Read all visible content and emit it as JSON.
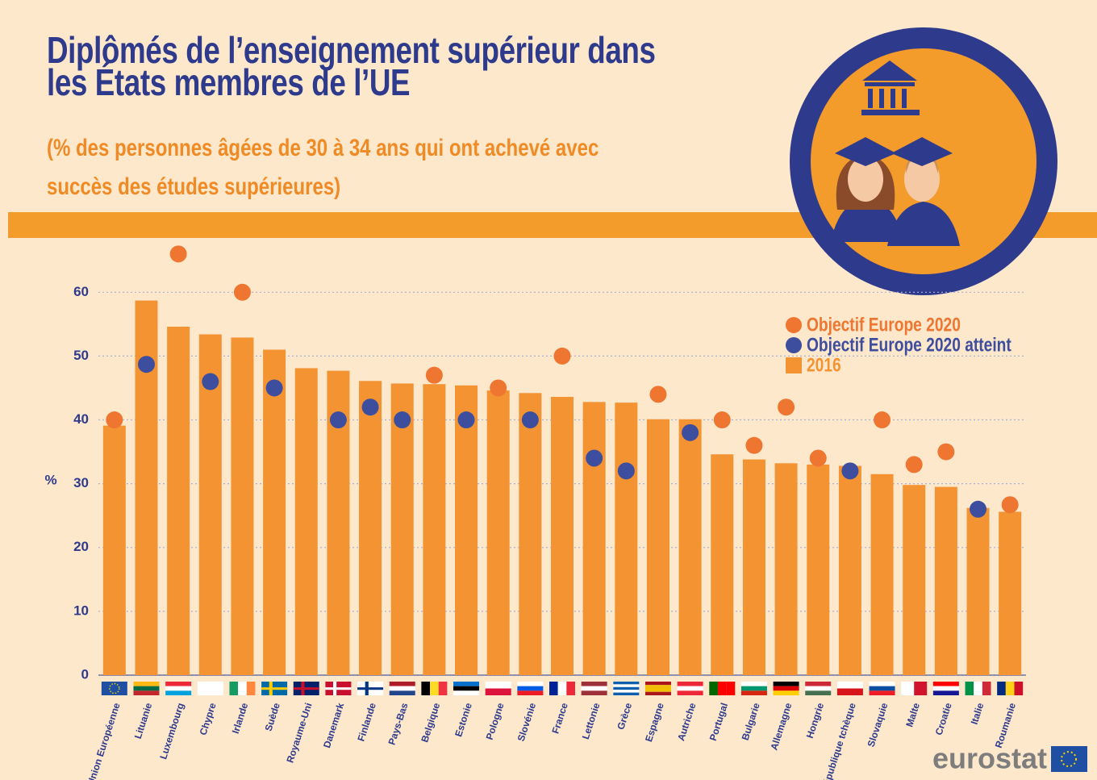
{
  "chart_data": {
    "type": "bar",
    "title": "Diplômés de l’enseignement supérieur dans les États membres de l’UE",
    "subtitle": "(% des personnes âgées de 30 à 34 ans qui ont achevé avec succès des études supérieures)",
    "y_label": "%",
    "categories": [
      "Union Européenne",
      "Lituanie",
      "Luxembourg",
      "Chypre",
      "Irlande",
      "Suède",
      "Royaume-Uni",
      "Danemark",
      "Finlande",
      "Pays-Bas",
      "Belgique",
      "Estonie",
      "Pologne",
      "Slovénie",
      "France",
      "Lettonie",
      "Grèce",
      "Espagne",
      "Autriche",
      "Portugal",
      "Bulgarie",
      "Allemagne",
      "Hongrie",
      "République tchèque",
      "Slovaquie",
      "Malte",
      "Croatie",
      "Italie",
      "Roumanie"
    ],
    "series": [
      {
        "name": "2016",
        "type": "bar",
        "color": "#f39332",
        "values": [
          39.1,
          58.7,
          54.6,
          53.4,
          52.9,
          51.0,
          48.1,
          47.7,
          46.1,
          45.7,
          45.6,
          45.4,
          44.6,
          44.2,
          43.6,
          42.8,
          42.7,
          40.1,
          40.1,
          34.6,
          33.8,
          33.2,
          33.0,
          32.8,
          31.5,
          29.8,
          29.5,
          26.2,
          25.6
        ]
      },
      {
        "name": "Objectif Europe 2020",
        "type": "scatter",
        "color": "#ee7630",
        "values": [
          40,
          null,
          66,
          null,
          60,
          null,
          null,
          null,
          null,
          null,
          47,
          null,
          45,
          null,
          50,
          null,
          null,
          44,
          null,
          40,
          36,
          42,
          34,
          null,
          40,
          33,
          35,
          null,
          26.7
        ]
      },
      {
        "name": "Objectif Europe 2020 atteint",
        "type": "scatter",
        "color": "#3d4e9f",
        "values": [
          null,
          48.7,
          null,
          46,
          null,
          45,
          null,
          40,
          42,
          40,
          null,
          40,
          null,
          40,
          null,
          34,
          32,
          null,
          38,
          null,
          null,
          null,
          null,
          32,
          null,
          null,
          null,
          26,
          null
        ]
      }
    ],
    "ylim": [
      0,
      68
    ],
    "yticks": [
      0,
      10,
      20,
      30,
      40,
      50,
      60
    ],
    "grid": true,
    "legend": "top-right",
    "source": "eurostat"
  }
}
